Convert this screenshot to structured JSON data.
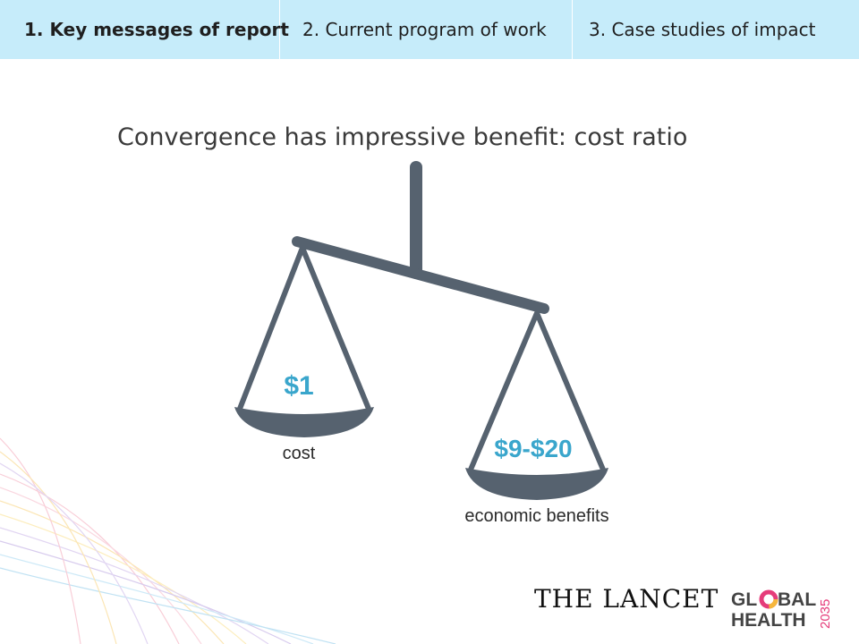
{
  "tabs": [
    {
      "label": "1. Key messages of report",
      "active": true
    },
    {
      "label": "2. Current program of work",
      "active": false
    },
    {
      "label": "3. Case studies of impact",
      "active": false
    }
  ],
  "slide": {
    "title": "Convergence has impressive  benefit: cost ratio"
  },
  "scale": {
    "left_pan_value": "$1",
    "left_pan_label": "cost",
    "right_pan_value": "$9-$20",
    "right_pan_label": "economic benefits",
    "color": "#56626f",
    "value_color": "#3aa6cc"
  },
  "logos": {
    "publisher": "THE LANCET",
    "initiative": "GLOBAL HEALTH 2035"
  }
}
